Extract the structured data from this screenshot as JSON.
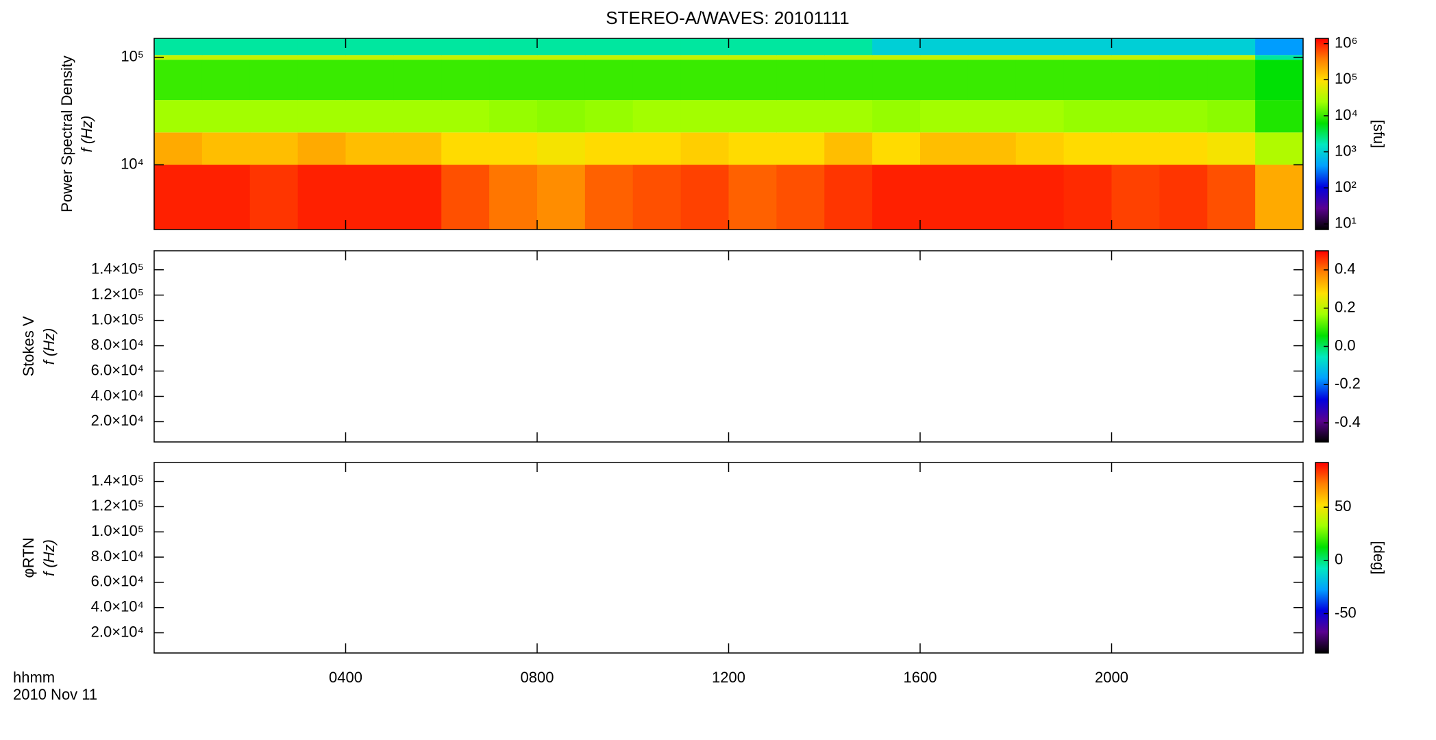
{
  "chart_data": [
    {
      "type": "heatmap",
      "title": "STEREO-A/WAVES: 20101111",
      "ylabel": "Power Spectral Density",
      "ylabel2": "f (Hz)",
      "ylog": true,
      "ylim": [
        2500,
        150000
      ],
      "yticks": [
        {
          "value": 10000,
          "label": "10⁴"
        },
        {
          "value": 100000,
          "label": "10⁵"
        }
      ],
      "x_edges": [
        0,
        1,
        2,
        3,
        4,
        5,
        6,
        7,
        8,
        9,
        10,
        11,
        12,
        13,
        14,
        15,
        16,
        17,
        18,
        19,
        20,
        21,
        22,
        23,
        24
      ],
      "y_edges": [
        2500,
        10000,
        20000,
        40000,
        95000,
        105000,
        150000
      ],
      "values": [
        [
          1000000,
          1000000,
          800000,
          1000000,
          1000000,
          1000000,
          600000,
          400000,
          300000,
          500000,
          600000,
          700000,
          500000,
          600000,
          800000,
          1000000,
          1000000,
          1000000,
          1000000,
          900000,
          700000,
          800000,
          600000,
          200000
        ],
        [
          200000,
          150000,
          150000,
          200000,
          150000,
          150000,
          100000,
          100000,
          80000,
          100000,
          100000,
          120000,
          100000,
          100000,
          150000,
          100000,
          150000,
          150000,
          120000,
          100000,
          100000,
          100000,
          80000,
          30000
        ],
        [
          25000,
          25000,
          25000,
          25000,
          25000,
          25000,
          25000,
          22000,
          20000,
          22000,
          25000,
          25000,
          25000,
          25000,
          25000,
          22000,
          25000,
          25000,
          25000,
          22000,
          22000,
          22000,
          20000,
          8000
        ],
        [
          10000,
          10000,
          10000,
          10000,
          10000,
          10000,
          10000,
          10000,
          10000,
          10000,
          10000,
          10000,
          10000,
          10000,
          10000,
          10000,
          10000,
          10000,
          10000,
          10000,
          10000,
          10000,
          10000,
          6000
        ],
        [
          40000,
          40000,
          40000,
          40000,
          40000,
          40000,
          40000,
          40000,
          40000,
          40000,
          40000,
          40000,
          40000,
          40000,
          40000,
          40000,
          40000,
          40000,
          40000,
          40000,
          40000,
          40000,
          40000,
          2000
        ],
        [
          2000,
          2000,
          2000,
          2000,
          2000,
          2000,
          2000,
          2000,
          2000,
          2000,
          2000,
          2000,
          2000,
          2000,
          2000,
          1000,
          1000,
          1000,
          1000,
          1000,
          1000,
          1000,
          1000,
          400
        ]
      ],
      "zlog": true,
      "zlim": [
        7,
        1400000
      ],
      "zticks": [
        {
          "value": 10,
          "label": "10¹"
        },
        {
          "value": 100,
          "label": "10²"
        },
        {
          "value": 1000,
          "label": "10³"
        },
        {
          "value": 10000,
          "label": "10⁴"
        },
        {
          "value": 100000,
          "label": "10⁵"
        },
        {
          "value": 1000000,
          "label": "10⁶"
        }
      ],
      "zlabel": "[sfu]",
      "colormap": [
        "#000000",
        "#5a0090",
        "#0000e0",
        "#00a0ff",
        "#00e8c0",
        "#00e000",
        "#a0ff00",
        "#ffe000",
        "#ff8000",
        "#ff0000"
      ]
    },
    {
      "type": "heatmap",
      "ylabel": "Stokes V",
      "ylabel2": "f (Hz)",
      "ylim": [
        4000,
        155000
      ],
      "yticks": [
        {
          "value": 20000,
          "label": "2.0×10⁴"
        },
        {
          "value": 40000,
          "label": "4.0×10⁴"
        },
        {
          "value": 60000,
          "label": "6.0×10⁴"
        },
        {
          "value": 80000,
          "label": "8.0×10⁴"
        },
        {
          "value": 100000,
          "label": "1.0×10⁵"
        },
        {
          "value": 120000,
          "label": "1.2×10⁵"
        },
        {
          "value": 140000,
          "label": "1.4×10⁵"
        }
      ],
      "zlim": [
        -0.5,
        0.5
      ],
      "zticks": [
        -0.4,
        -0.2,
        {
          "value": 0,
          "label": "0.0"
        },
        0.2,
        0.4
      ],
      "colormap": [
        "#000000",
        "#5a0090",
        "#0000e0",
        "#00a0ff",
        "#00e8c0",
        "#00e000",
        "#a0ff00",
        "#ffe000",
        "#ff8000",
        "#ff0000"
      ]
    },
    {
      "type": "heatmap",
      "ylabel": "φRTN",
      "ylabel2": "f (Hz)",
      "ylim": [
        4000,
        155000
      ],
      "yticks": [
        {
          "value": 20000,
          "label": "2.0×10⁴"
        },
        {
          "value": 40000,
          "label": "4.0×10⁴"
        },
        {
          "value": 60000,
          "label": "6.0×10⁴"
        },
        {
          "value": 80000,
          "label": "8.0×10⁴"
        },
        {
          "value": 100000,
          "label": "1.0×10⁵"
        },
        {
          "value": 120000,
          "label": "1.2×10⁵"
        },
        {
          "value": 140000,
          "label": "1.4×10⁵"
        }
      ],
      "zlim": [
        -87,
        92
      ],
      "zticks": [
        -50,
        0,
        50
      ],
      "zlabel": "[deg]",
      "colormap": [
        "#000000",
        "#5a0090",
        "#0000e0",
        "#00a0ff",
        "#00e8c0",
        "#00e000",
        "#a0ff00",
        "#ffe000",
        "#ff8000",
        "#ff0000"
      ],
      "xlim": [
        0,
        24
      ],
      "xticks": [
        {
          "value": 4,
          "label": "0400"
        },
        {
          "value": 8,
          "label": "0800"
        },
        {
          "value": 12,
          "label": "1200"
        },
        {
          "value": 16,
          "label": "1600"
        },
        {
          "value": 20,
          "label": "2000"
        }
      ],
      "xlabel": "hhmm",
      "date": "2010 Nov 11"
    }
  ]
}
